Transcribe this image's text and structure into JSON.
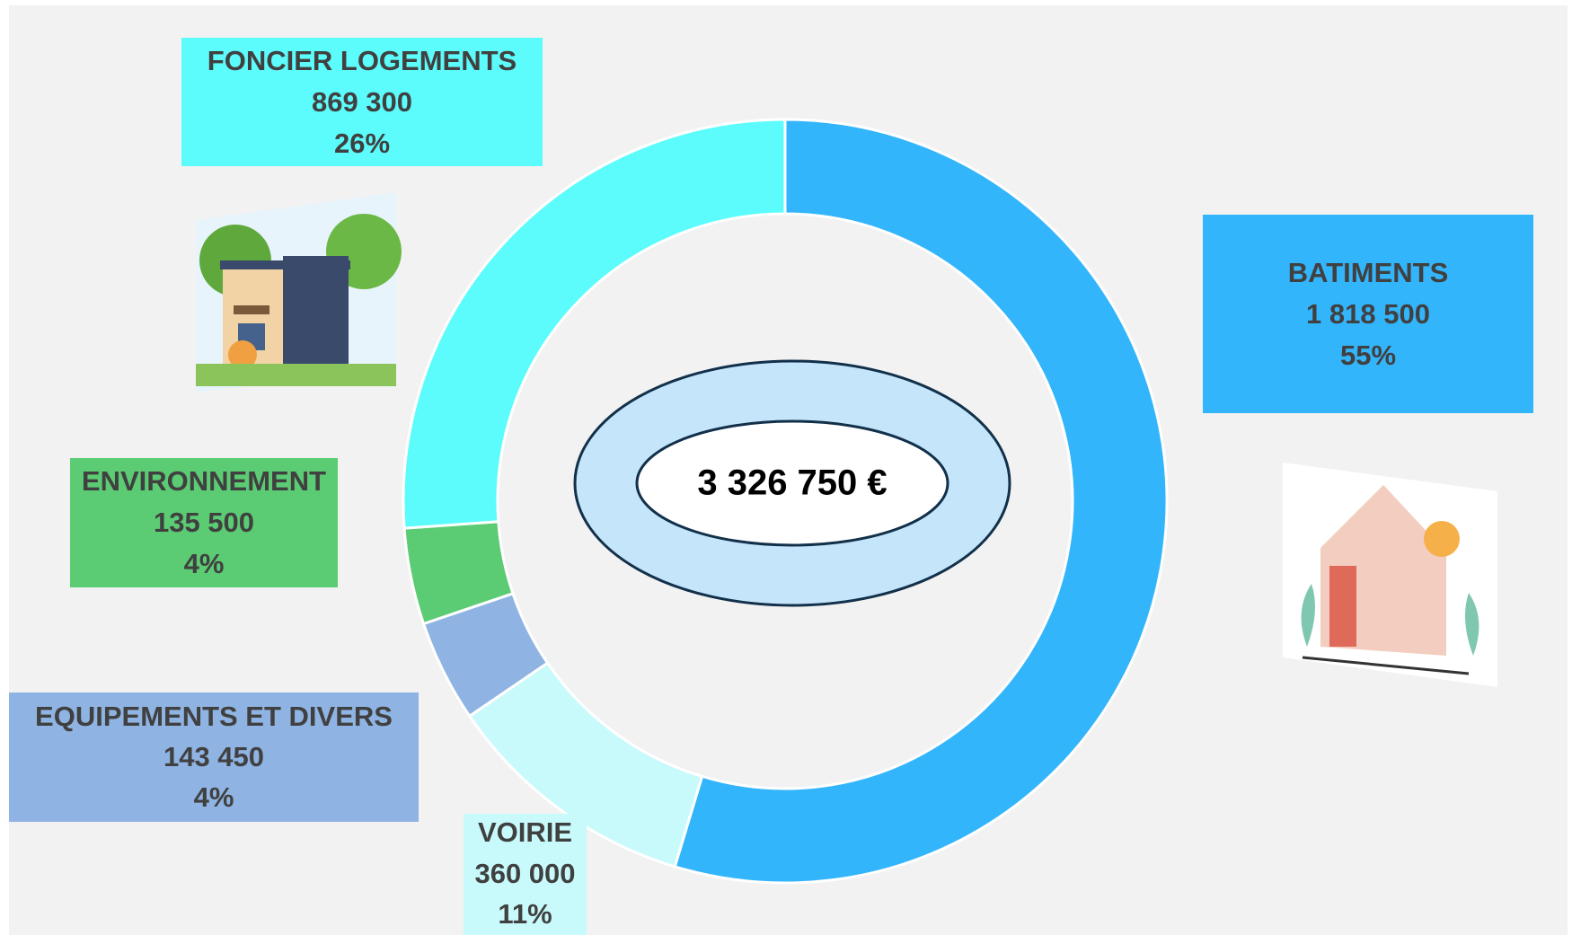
{
  "chart_data": {
    "type": "pie",
    "donut": true,
    "categories": [
      "BATIMENTS",
      "VOIRIE",
      "EQUIPEMENTS ET DIVERS",
      "ENVIRONNEMENT",
      "FONCIER LOGEMENTS"
    ],
    "values": [
      1818500,
      360000,
      143450,
      135500,
      869300
    ],
    "value_labels": [
      "1 818 500",
      "360 000",
      "143 450",
      "135 500",
      "869 300"
    ],
    "shares": [
      {
        "value": 55,
        "label": "55%"
      },
      {
        "value": 11,
        "label": "11%"
      },
      {
        "value": 4,
        "label": "4%"
      },
      {
        "value": 4,
        "label": "4%"
      },
      {
        "value": 26,
        "label": "26%"
      }
    ],
    "colors": [
      "#33b5fc",
      "#c8fafc",
      "#8fb4e3",
      "#5bcc74",
      "#5cfcfc"
    ],
    "total": {
      "value": 3326750,
      "label": "3 326 750 €"
    }
  }
}
